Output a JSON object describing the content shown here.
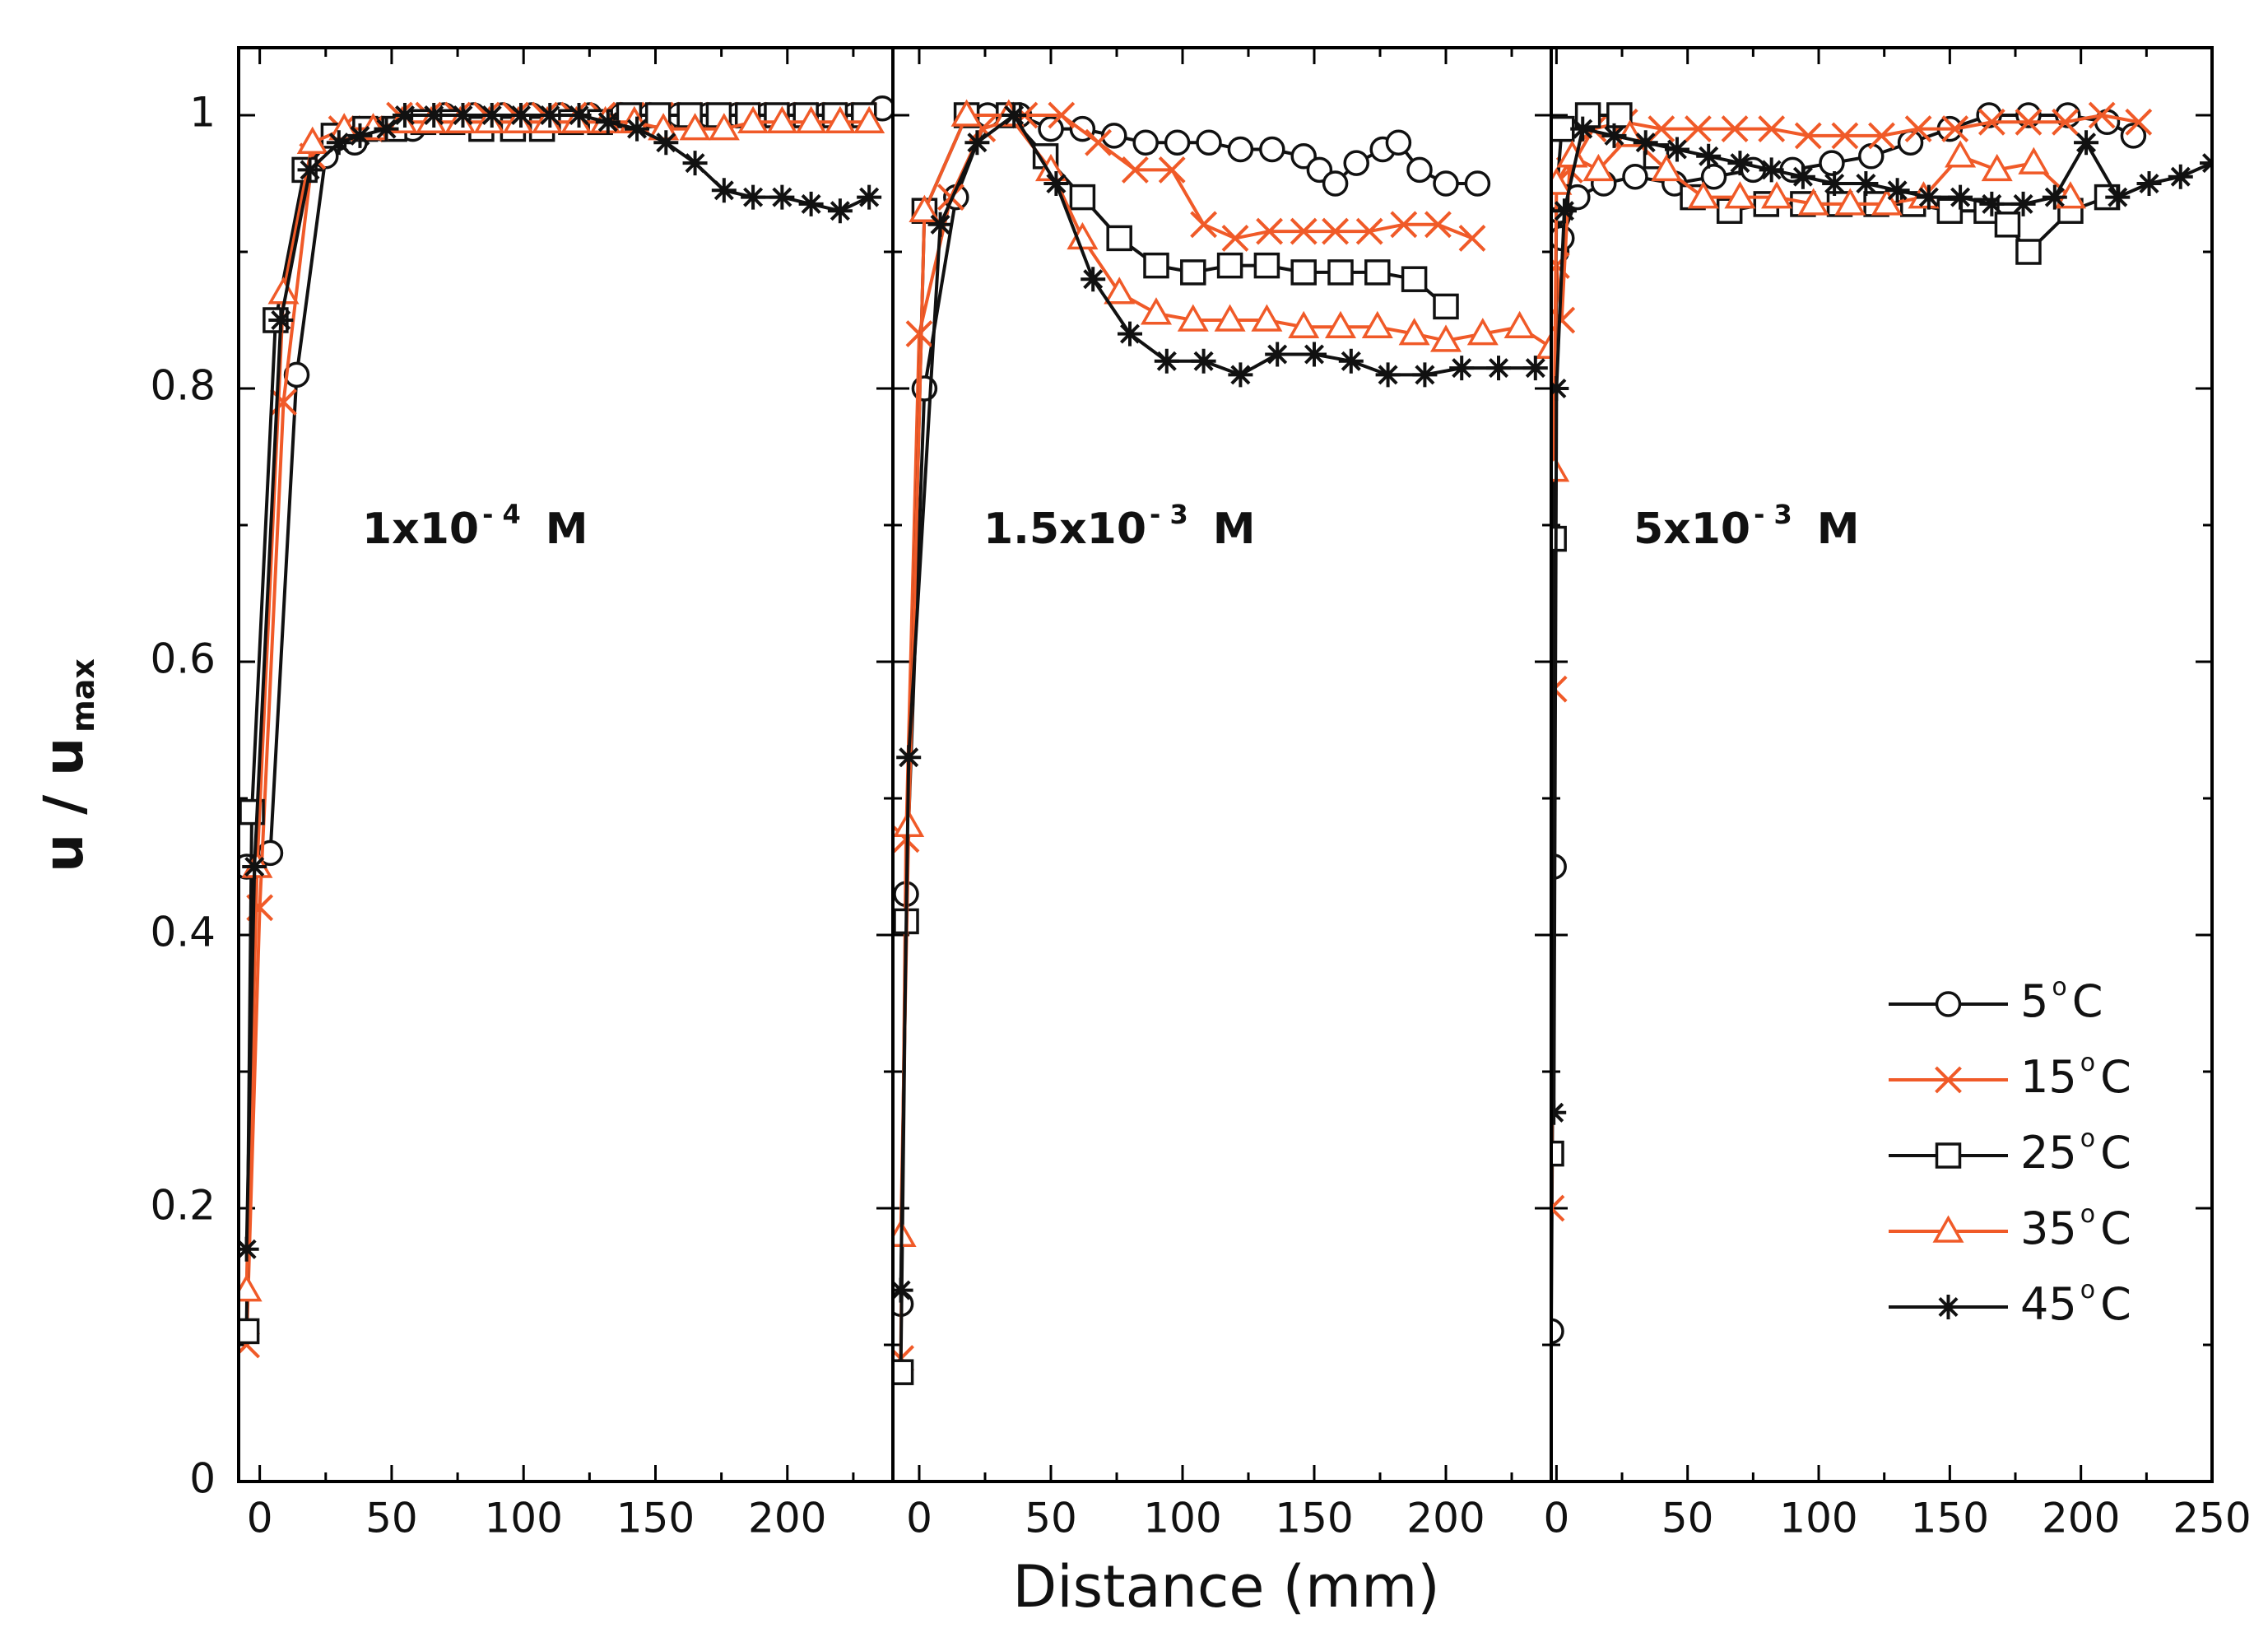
{
  "chart_data": {
    "type": "line",
    "ylabel": "u / u",
    "ylabel_sub": "max",
    "xlabel": "Distance (mm)",
    "ylim": [
      0,
      1.05
    ],
    "yticks": [
      0,
      0.2,
      0.4,
      0.6,
      0.8,
      1
    ],
    "ytick_labels": [
      "0",
      "0.2",
      "0.4",
      "0.6",
      "0.8",
      "1"
    ],
    "colors": {
      "black": "#111111",
      "red": "#f05a28"
    },
    "legend": [
      {
        "name": "5",
        "unit": "C",
        "color": "#111111",
        "marker": "circle"
      },
      {
        "name": "15",
        "unit": "C",
        "color": "#f05a28",
        "marker": "x"
      },
      {
        "name": "25",
        "unit": "C",
        "color": "#111111",
        "marker": "square"
      },
      {
        "name": "35",
        "unit": "C",
        "color": "#f05a28",
        "marker": "triangle"
      },
      {
        "name": "45",
        "unit": "C",
        "color": "#111111",
        "marker": "star"
      }
    ],
    "panels": [
      {
        "label_base": "1x10",
        "label_exp": "- 4",
        "label_unit": "M",
        "xlim": [
          -8,
          240
        ],
        "xticks": [
          0,
          50,
          100,
          150,
          200
        ],
        "xtick_labels": [
          "0",
          "50",
          "100",
          "150",
          "200"
        ],
        "series": [
          {
            "name": "5",
            "x": [
              -5,
              4,
              14,
              25,
              36,
              47,
              58,
              70,
              81,
              92,
              103,
              114,
              125,
              137,
              148,
              159,
              170,
              181,
              192,
              203,
              214,
              225,
              236
            ],
            "y": [
              0.45,
              0.46,
              0.81,
              0.97,
              0.98,
              0.99,
              0.99,
              1.0,
              1.0,
              1.0,
              1.0,
              1.0,
              1.0,
              1.0,
              1.0,
              1.0,
              1.0,
              1.0,
              1.0,
              1.0,
              1.0,
              1.0,
              1.005
            ]
          },
          {
            "name": "15",
            "x": [
              -5,
              0,
              9,
              20,
              31,
              42,
              53,
              64,
              75,
              86,
              97,
              108,
              119,
              130,
              141,
              152,
              163,
              174,
              185,
              196,
              207,
              218,
              229
            ],
            "y": [
              0.1,
              0.42,
              0.79,
              0.97,
              0.99,
              0.99,
              1.0,
              1.0,
              1.0,
              1.0,
              1.0,
              1.0,
              1.0,
              1.0,
              1.0,
              1.0,
              1.0,
              1.0,
              1.0,
              1.0,
              1.0,
              1.0,
              1.0
            ]
          },
          {
            "name": "25",
            "x": [
              -5,
              -3,
              6,
              17,
              28,
              40,
              51,
              62,
              73,
              84,
              96,
              107,
              118,
              129,
              140,
              151,
              163,
              174,
              185,
              196,
              207,
              218,
              229
            ],
            "y": [
              0.11,
              0.49,
              0.85,
              0.96,
              0.985,
              0.99,
              0.99,
              0.995,
              0.995,
              0.99,
              0.99,
              0.99,
              0.995,
              0.995,
              1.0,
              1.0,
              1.0,
              1.0,
              1.0,
              1.0,
              1.0,
              1.0,
              1.0
            ]
          },
          {
            "name": "35",
            "x": [
              -5,
              -1,
              9,
              20,
              32,
              43,
              54,
              65,
              76,
              87,
              98,
              109,
              120,
              131,
              142,
              153,
              165,
              176,
              187,
              198,
              209,
              220,
              231
            ],
            "y": [
              0.14,
              0.45,
              0.87,
              0.98,
              0.99,
              0.99,
              0.995,
              0.995,
              0.995,
              0.995,
              0.995,
              0.995,
              0.995,
              0.995,
              0.995,
              0.99,
              0.99,
              0.99,
              0.995,
              0.995,
              0.995,
              0.995,
              0.995
            ]
          },
          {
            "name": "45",
            "x": [
              -5,
              -2,
              8,
              19,
              30,
              38,
              48,
              55,
              66,
              77,
              88,
              99,
              110,
              121,
              132,
              143,
              154,
              165,
              176,
              187,
              198,
              209,
              220,
              231
            ],
            "y": [
              0.17,
              0.45,
              0.85,
              0.96,
              0.98,
              0.985,
              0.99,
              1.0,
              1.0,
              1.0,
              1.0,
              1.0,
              1.0,
              1.0,
              0.995,
              0.99,
              0.98,
              0.965,
              0.945,
              0.94,
              0.94,
              0.935,
              0.93,
              0.94
            ]
          }
        ]
      },
      {
        "label_base": "1.5x10",
        "label_exp": "- 3",
        "label_unit": "M",
        "xlim": [
          -10,
          240
        ],
        "xticks": [
          0,
          50,
          100,
          150,
          200
        ],
        "xtick_labels": [
          "0",
          "50",
          "100",
          "150",
          "200"
        ],
        "series": [
          {
            "name": "5",
            "x": [
              -7,
              -5,
              2,
              14,
              26,
              38,
              50,
              62,
              74,
              86,
              98,
              110,
              122,
              134,
              146,
              152,
              158,
              166,
              176,
              182,
              190,
              200,
              212
            ],
            "y": [
              0.13,
              0.43,
              0.8,
              0.94,
              1.0,
              1.0,
              0.99,
              0.99,
              0.985,
              0.98,
              0.98,
              0.98,
              0.975,
              0.975,
              0.97,
              0.96,
              0.95,
              0.965,
              0.975,
              0.98,
              0.96,
              0.95,
              0.95
            ]
          },
          {
            "name": "15",
            "x": [
              -7,
              -5,
              0,
              12,
              24,
              40,
              54,
              68,
              82,
              96,
              108,
              120,
              133,
              146,
              158,
              171,
              184,
              197,
              210
            ],
            "y": [
              0.09,
              0.47,
              0.84,
              0.94,
              0.99,
              1.0,
              1.0,
              0.98,
              0.96,
              0.96,
              0.92,
              0.91,
              0.915,
              0.915,
              0.915,
              0.915,
              0.92,
              0.92,
              0.91
            ]
          },
          {
            "name": "25",
            "x": [
              -7,
              -5,
              2,
              18,
              34,
              48,
              62,
              76,
              90,
              104,
              118,
              132,
              146,
              160,
              174,
              188,
              200
            ],
            "y": [
              0.08,
              0.41,
              0.93,
              1.0,
              1.0,
              0.97,
              0.94,
              0.91,
              0.89,
              0.885,
              0.89,
              0.89,
              0.885,
              0.885,
              0.885,
              0.88,
              0.86
            ]
          },
          {
            "name": "35",
            "x": [
              -7,
              -4,
              2,
              18,
              34,
              50,
              62,
              76,
              90,
              104,
              118,
              132,
              146,
              160,
              174,
              188,
              200,
              214,
              228,
              240
            ],
            "y": [
              0.18,
              0.48,
              0.93,
              1.0,
              1.0,
              0.96,
              0.91,
              0.87,
              0.855,
              0.85,
              0.85,
              0.85,
              0.845,
              0.845,
              0.845,
              0.84,
              0.835,
              0.84,
              0.845,
              0.83
            ]
          },
          {
            "name": "45",
            "x": [
              -7,
              -4,
              8,
              22,
              36,
              52,
              66,
              80,
              94,
              108,
              122,
              136,
              150,
              164,
              178,
              192,
              206,
              220,
              234
            ],
            "y": [
              0.14,
              0.53,
              0.92,
              0.98,
              1.0,
              0.95,
              0.88,
              0.84,
              0.82,
              0.82,
              0.81,
              0.825,
              0.825,
              0.82,
              0.81,
              0.81,
              0.815,
              0.815,
              0.815
            ]
          }
        ]
      },
      {
        "label_base": "5x10",
        "label_exp": "- 3",
        "label_unit": "M",
        "xlim": [
          -2,
          250
        ],
        "xticks": [
          0,
          50,
          100,
          150,
          200,
          250
        ],
        "xtick_labels": [
          "0",
          "50",
          "100",
          "150",
          "200",
          "250"
        ],
        "series": [
          {
            "name": "5",
            "x": [
              -2,
              -1,
              0,
              1,
              2,
              8,
              18,
              30,
              45,
              60,
              75,
              90,
              105,
              120,
              135,
              150,
              165,
              180,
              195,
              210,
              220
            ],
            "y": [
              0.11,
              0.45,
              0.9,
              0.93,
              0.91,
              0.94,
              0.95,
              0.955,
              0.95,
              0.955,
              0.96,
              0.96,
              0.965,
              0.97,
              0.98,
              0.99,
              1.0,
              1.0,
              1.0,
              0.995,
              0.985
            ]
          },
          {
            "name": "15",
            "x": [
              -2,
              -1,
              0,
              2,
              5,
              14,
              26,
              40,
              54,
              68,
              82,
              96,
              110,
              124,
              138,
              152,
              166,
              180,
              194,
              208,
              222
            ],
            "y": [
              0.2,
              0.58,
              0.89,
              0.85,
              0.96,
              0.99,
              0.995,
              0.99,
              0.99,
              0.99,
              0.99,
              0.985,
              0.985,
              0.985,
              0.99,
              0.99,
              0.995,
              0.995,
              0.995,
              1.0,
              0.995
            ]
          },
          {
            "name": "25",
            "x": [
              -2,
              -1,
              0,
              2,
              12,
              24,
              38,
              52,
              66,
              80,
              94,
              108,
              122,
              136,
              150,
              164,
              172,
              180,
              196,
              210
            ],
            "y": [
              0.24,
              0.69,
              0.94,
              0.99,
              1.0,
              1.0,
              0.97,
              0.94,
              0.93,
              0.935,
              0.935,
              0.935,
              0.935,
              0.935,
              0.93,
              0.93,
              0.92,
              0.9,
              0.93,
              0.94
            ]
          },
          {
            "name": "35",
            "x": [
              -1,
              0,
              6,
              16,
              28,
              42,
              56,
              70,
              84,
              98,
              112,
              126,
              140,
              154,
              168,
              182,
              196
            ],
            "y": [
              0.74,
              0.95,
              0.97,
              0.96,
              0.985,
              0.96,
              0.94,
              0.94,
              0.94,
              0.935,
              0.935,
              0.935,
              0.94,
              0.97,
              0.96,
              0.965,
              0.94
            ]
          },
          {
            "name": "45",
            "x": [
              -1,
              0,
              3,
              10,
              22,
              34,
              46,
              58,
              70,
              82,
              94,
              106,
              118,
              130,
              142,
              154,
              166,
              178,
              190,
              202,
              214,
              226,
              238,
              250
            ],
            "y": [
              0.27,
              0.8,
              0.93,
              0.99,
              0.985,
              0.98,
              0.975,
              0.97,
              0.965,
              0.96,
              0.955,
              0.95,
              0.95,
              0.945,
              0.94,
              0.94,
              0.935,
              0.935,
              0.94,
              0.98,
              0.94,
              0.95,
              0.955,
              0.965
            ]
          }
        ]
      }
    ]
  }
}
